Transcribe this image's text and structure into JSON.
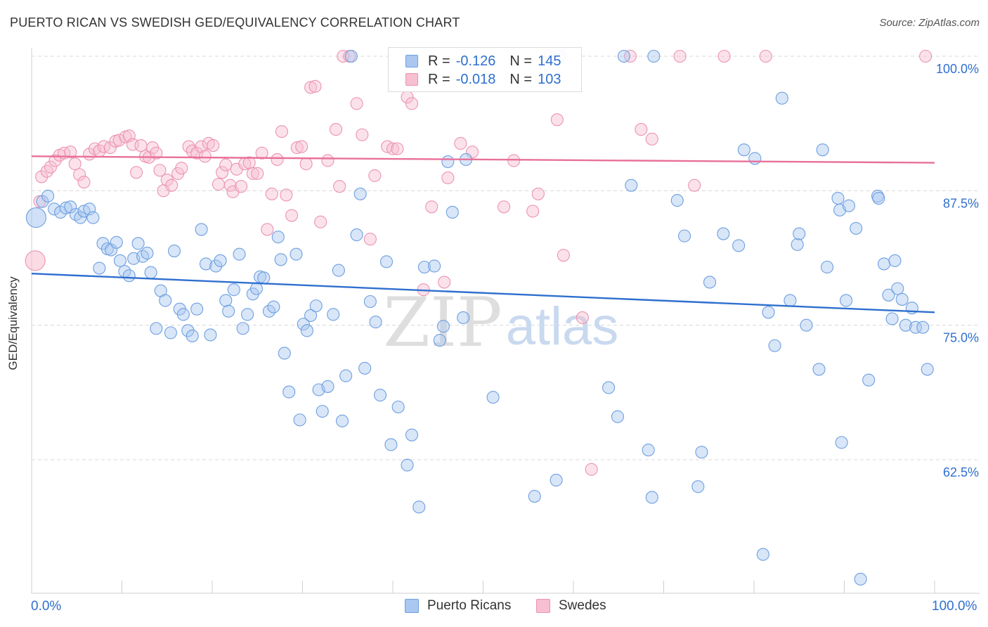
{
  "title": "PUERTO RICAN VS SWEDISH GED/EQUIVALENCY CORRELATION CHART",
  "source": "Source: ZipAtlas.com",
  "watermark": {
    "zip": "ZIP",
    "atlas": "atlas"
  },
  "legend": {
    "rows": [
      {
        "r_label": "R =",
        "r_value": "-0.126",
        "n_label": "N =",
        "n_value": "145"
      },
      {
        "r_label": "R =",
        "r_value": "-0.018",
        "n_label": "N =",
        "n_value": "103"
      }
    ]
  },
  "bottom_legend": [
    "Puerto Ricans",
    "Swedes"
  ],
  "colors": {
    "blue_fill": "#a9c7f0",
    "blue_stroke": "#6e9fe0",
    "blue_line": "#2f6fcf",
    "pink_fill": "#f7bfd0",
    "pink_stroke": "#ec93b2",
    "pink_line": "#e8709a",
    "tick_text": "#2f6fcf",
    "grid": "#d8d8d8"
  },
  "chart_data": {
    "type": "scatter",
    "title": "PUERTO RICAN VS SWEDISH GED/EQUIVALENCY CORRELATION CHART",
    "xlabel": "",
    "ylabel": "GED/Equivalency",
    "xlim": [
      0,
      100
    ],
    "ylim": [
      51.3,
      101.5
    ],
    "x_tick_labels": [
      "0.0%",
      "100.0%"
    ],
    "y_ticks": [
      62.5,
      75.0,
      87.5,
      100.0
    ],
    "y_tick_labels": [
      "62.5%",
      "75.0%",
      "87.5%",
      "100.0%"
    ],
    "grid": "horizontal dashed",
    "series": [
      {
        "name": "Puerto Ricans",
        "trend": {
          "x": [
            0,
            100
          ],
          "y": [
            79.8,
            76.2
          ]
        },
        "points": [
          [
            0.5,
            85.0
          ],
          [
            1.2,
            86.5
          ],
          [
            1.8,
            87.0
          ],
          [
            2.5,
            85.8
          ],
          [
            3.2,
            85.5
          ],
          [
            3.8,
            85.9
          ],
          [
            4.3,
            86.0
          ],
          [
            4.9,
            85.3
          ],
          [
            5.4,
            85.0
          ],
          [
            5.8,
            85.6
          ],
          [
            6.4,
            85.8
          ],
          [
            6.8,
            85.0
          ],
          [
            7.5,
            80.3
          ],
          [
            7.9,
            82.6
          ],
          [
            8.4,
            82.1
          ],
          [
            8.8,
            82.0
          ],
          [
            9.4,
            82.7
          ],
          [
            9.8,
            81.0
          ],
          [
            10.3,
            80.0
          ],
          [
            10.8,
            79.6
          ],
          [
            11.3,
            81.2
          ],
          [
            11.8,
            82.6
          ],
          [
            12.3,
            81.4
          ],
          [
            12.8,
            81.7
          ],
          [
            13.2,
            79.9
          ],
          [
            13.8,
            74.7
          ],
          [
            14.3,
            78.2
          ],
          [
            14.8,
            77.3
          ],
          [
            15.4,
            74.3
          ],
          [
            15.8,
            81.9
          ],
          [
            16.4,
            76.5
          ],
          [
            16.8,
            76.0
          ],
          [
            17.3,
            74.5
          ],
          [
            17.8,
            74.0
          ],
          [
            18.3,
            76.5
          ],
          [
            18.8,
            83.9
          ],
          [
            19.3,
            80.7
          ],
          [
            19.8,
            74.1
          ],
          [
            20.4,
            80.5
          ],
          [
            20.9,
            81.0
          ],
          [
            21.5,
            77.3
          ],
          [
            21.8,
            76.3
          ],
          [
            22.4,
            78.3
          ],
          [
            23.0,
            81.6
          ],
          [
            23.4,
            74.7
          ],
          [
            23.9,
            76.0
          ],
          [
            24.5,
            77.9
          ],
          [
            24.9,
            78.4
          ],
          [
            25.3,
            79.5
          ],
          [
            25.7,
            79.4
          ],
          [
            26.3,
            76.3
          ],
          [
            26.8,
            76.7
          ],
          [
            27.3,
            83.2
          ],
          [
            27.6,
            81.1
          ],
          [
            28.0,
            72.4
          ],
          [
            28.5,
            68.8
          ],
          [
            29.3,
            81.6
          ],
          [
            29.7,
            66.2
          ],
          [
            30.1,
            75.1
          ],
          [
            30.5,
            74.5
          ],
          [
            30.9,
            75.9
          ],
          [
            31.5,
            76.8
          ],
          [
            31.8,
            69.0
          ],
          [
            32.2,
            67.0
          ],
          [
            32.8,
            69.3
          ],
          [
            33.4,
            76.0
          ],
          [
            34.0,
            80.1
          ],
          [
            34.4,
            66.1
          ],
          [
            34.8,
            70.3
          ],
          [
            35.4,
            100.0
          ],
          [
            36.0,
            83.4
          ],
          [
            36.4,
            87.2
          ],
          [
            36.9,
            71.0
          ],
          [
            37.5,
            77.2
          ],
          [
            38.1,
            75.3
          ],
          [
            38.6,
            68.5
          ],
          [
            39.3,
            80.9
          ],
          [
            39.8,
            63.9
          ],
          [
            40.6,
            67.4
          ],
          [
            41.6,
            62.0
          ],
          [
            42.1,
            64.8
          ],
          [
            42.9,
            58.1
          ],
          [
            43.5,
            80.4
          ],
          [
            44.6,
            80.5
          ],
          [
            45.2,
            73.6
          ],
          [
            45.6,
            74.9
          ],
          [
            46.1,
            90.2
          ],
          [
            46.6,
            85.5
          ],
          [
            47.8,
            75.7
          ],
          [
            48.1,
            90.4
          ],
          [
            51.1,
            68.3
          ],
          [
            55.7,
            59.1
          ],
          [
            58.1,
            60.6
          ],
          [
            58.5,
            100.0
          ],
          [
            63.9,
            69.2
          ],
          [
            64.9,
            66.5
          ],
          [
            65.6,
            100.0
          ],
          [
            66.4,
            88.0
          ],
          [
            68.3,
            63.4
          ],
          [
            68.7,
            59.0
          ],
          [
            68.9,
            100.0
          ],
          [
            71.5,
            86.6
          ],
          [
            72.3,
            83.3
          ],
          [
            73.8,
            60.0
          ],
          [
            74.2,
            63.2
          ],
          [
            75.1,
            79.0
          ],
          [
            76.6,
            83.5
          ],
          [
            78.3,
            82.4
          ],
          [
            78.9,
            91.3
          ],
          [
            80.1,
            90.5
          ],
          [
            81.0,
            53.7
          ],
          [
            81.6,
            76.2
          ],
          [
            82.3,
            73.1
          ],
          [
            83.1,
            96.1
          ],
          [
            84.0,
            77.3
          ],
          [
            84.8,
            82.5
          ],
          [
            85.0,
            83.5
          ],
          [
            85.8,
            75.0
          ],
          [
            87.2,
            70.9
          ],
          [
            87.6,
            91.3
          ],
          [
            88.1,
            80.4
          ],
          [
            89.3,
            86.8
          ],
          [
            89.5,
            85.7
          ],
          [
            89.7,
            64.1
          ],
          [
            90.2,
            77.3
          ],
          [
            90.5,
            86.1
          ],
          [
            91.3,
            84.0
          ],
          [
            91.8,
            51.4
          ],
          [
            92.7,
            69.9
          ],
          [
            93.7,
            87.0
          ],
          [
            93.8,
            86.8
          ],
          [
            94.4,
            80.7
          ],
          [
            94.9,
            77.8
          ],
          [
            95.3,
            75.6
          ],
          [
            95.6,
            81.0
          ],
          [
            95.9,
            78.4
          ],
          [
            96.4,
            77.4
          ],
          [
            96.8,
            75.0
          ],
          [
            97.5,
            76.6
          ],
          [
            97.9,
            74.8
          ],
          [
            98.7,
            74.8
          ],
          [
            99.2,
            70.9
          ]
        ]
      },
      {
        "name": "Swedes",
        "trend": {
          "x": [
            0,
            100
          ],
          "y": [
            90.7,
            90.1
          ]
        },
        "points": [
          [
            0.4,
            81.0
          ],
          [
            0.9,
            86.5
          ],
          [
            1.1,
            88.8
          ],
          [
            1.7,
            89.3
          ],
          [
            2.1,
            89.7
          ],
          [
            2.6,
            90.3
          ],
          [
            3.1,
            90.8
          ],
          [
            3.6,
            91.0
          ],
          [
            4.3,
            91.1
          ],
          [
            4.8,
            90.0
          ],
          [
            5.3,
            89.0
          ],
          [
            5.8,
            88.3
          ],
          [
            6.4,
            90.9
          ],
          [
            7.0,
            91.4
          ],
          [
            7.5,
            91.2
          ],
          [
            8.0,
            91.6
          ],
          [
            8.7,
            91.5
          ],
          [
            9.3,
            92.1
          ],
          [
            9.7,
            92.2
          ],
          [
            10.4,
            92.5
          ],
          [
            10.8,
            92.6
          ],
          [
            11.2,
            91.8
          ],
          [
            11.6,
            89.2
          ],
          [
            12.1,
            91.7
          ],
          [
            12.6,
            90.7
          ],
          [
            13.0,
            90.6
          ],
          [
            13.4,
            91.5
          ],
          [
            13.8,
            91.0
          ],
          [
            14.2,
            89.4
          ],
          [
            14.6,
            87.5
          ],
          [
            15.0,
            88.5
          ],
          [
            15.5,
            88.0
          ],
          [
            16.2,
            89.1
          ],
          [
            16.6,
            89.6
          ],
          [
            17.4,
            91.6
          ],
          [
            17.8,
            91.2
          ],
          [
            18.3,
            91.0
          ],
          [
            18.8,
            91.6
          ],
          [
            19.2,
            90.7
          ],
          [
            19.6,
            91.9
          ],
          [
            20.1,
            91.7
          ],
          [
            20.7,
            88.1
          ],
          [
            21.1,
            89.2
          ],
          [
            21.5,
            89.9
          ],
          [
            22.0,
            88.0
          ],
          [
            22.3,
            87.4
          ],
          [
            22.7,
            89.5
          ],
          [
            23.2,
            87.9
          ],
          [
            23.6,
            90.0
          ],
          [
            24.1,
            90.1
          ],
          [
            24.5,
            89.1
          ],
          [
            25.0,
            89.1
          ],
          [
            25.5,
            91.0
          ],
          [
            26.1,
            83.9
          ],
          [
            26.6,
            87.2
          ],
          [
            27.2,
            90.4
          ],
          [
            27.7,
            93.0
          ],
          [
            28.2,
            87.1
          ],
          [
            28.8,
            85.2
          ],
          [
            29.4,
            91.5
          ],
          [
            29.9,
            91.6
          ],
          [
            30.4,
            90.0
          ],
          [
            30.9,
            97.1
          ],
          [
            31.4,
            97.2
          ],
          [
            32.0,
            84.6
          ],
          [
            32.8,
            90.3
          ],
          [
            33.7,
            93.2
          ],
          [
            34.1,
            87.9
          ],
          [
            34.5,
            100.0
          ],
          [
            35.2,
            100.0
          ],
          [
            36.0,
            95.6
          ],
          [
            36.6,
            92.7
          ],
          [
            37.5,
            83.0
          ],
          [
            38.0,
            88.9
          ],
          [
            39.4,
            91.6
          ],
          [
            40.0,
            91.4
          ],
          [
            40.5,
            91.4
          ],
          [
            41.6,
            96.2
          ],
          [
            42.1,
            95.6
          ],
          [
            43.4,
            78.3
          ],
          [
            44.3,
            86.0
          ],
          [
            45.7,
            79.0
          ],
          [
            46.1,
            88.7
          ],
          [
            47.5,
            91.9
          ],
          [
            48.8,
            91.1
          ],
          [
            52.3,
            86.0
          ],
          [
            53.4,
            90.3
          ],
          [
            55.5,
            85.6
          ],
          [
            56.1,
            87.2
          ],
          [
            57.4,
            100.0
          ],
          [
            58.2,
            94.1
          ],
          [
            58.9,
            81.5
          ],
          [
            61.0,
            75.7
          ],
          [
            62.0,
            61.6
          ],
          [
            66.3,
            100.0
          ],
          [
            67.5,
            93.2
          ],
          [
            68.7,
            92.3
          ],
          [
            71.8,
            100.0
          ],
          [
            73.4,
            88.0
          ],
          [
            76.7,
            100.0
          ],
          [
            81.3,
            100.0
          ],
          [
            99.0,
            100.0
          ]
        ]
      }
    ]
  }
}
